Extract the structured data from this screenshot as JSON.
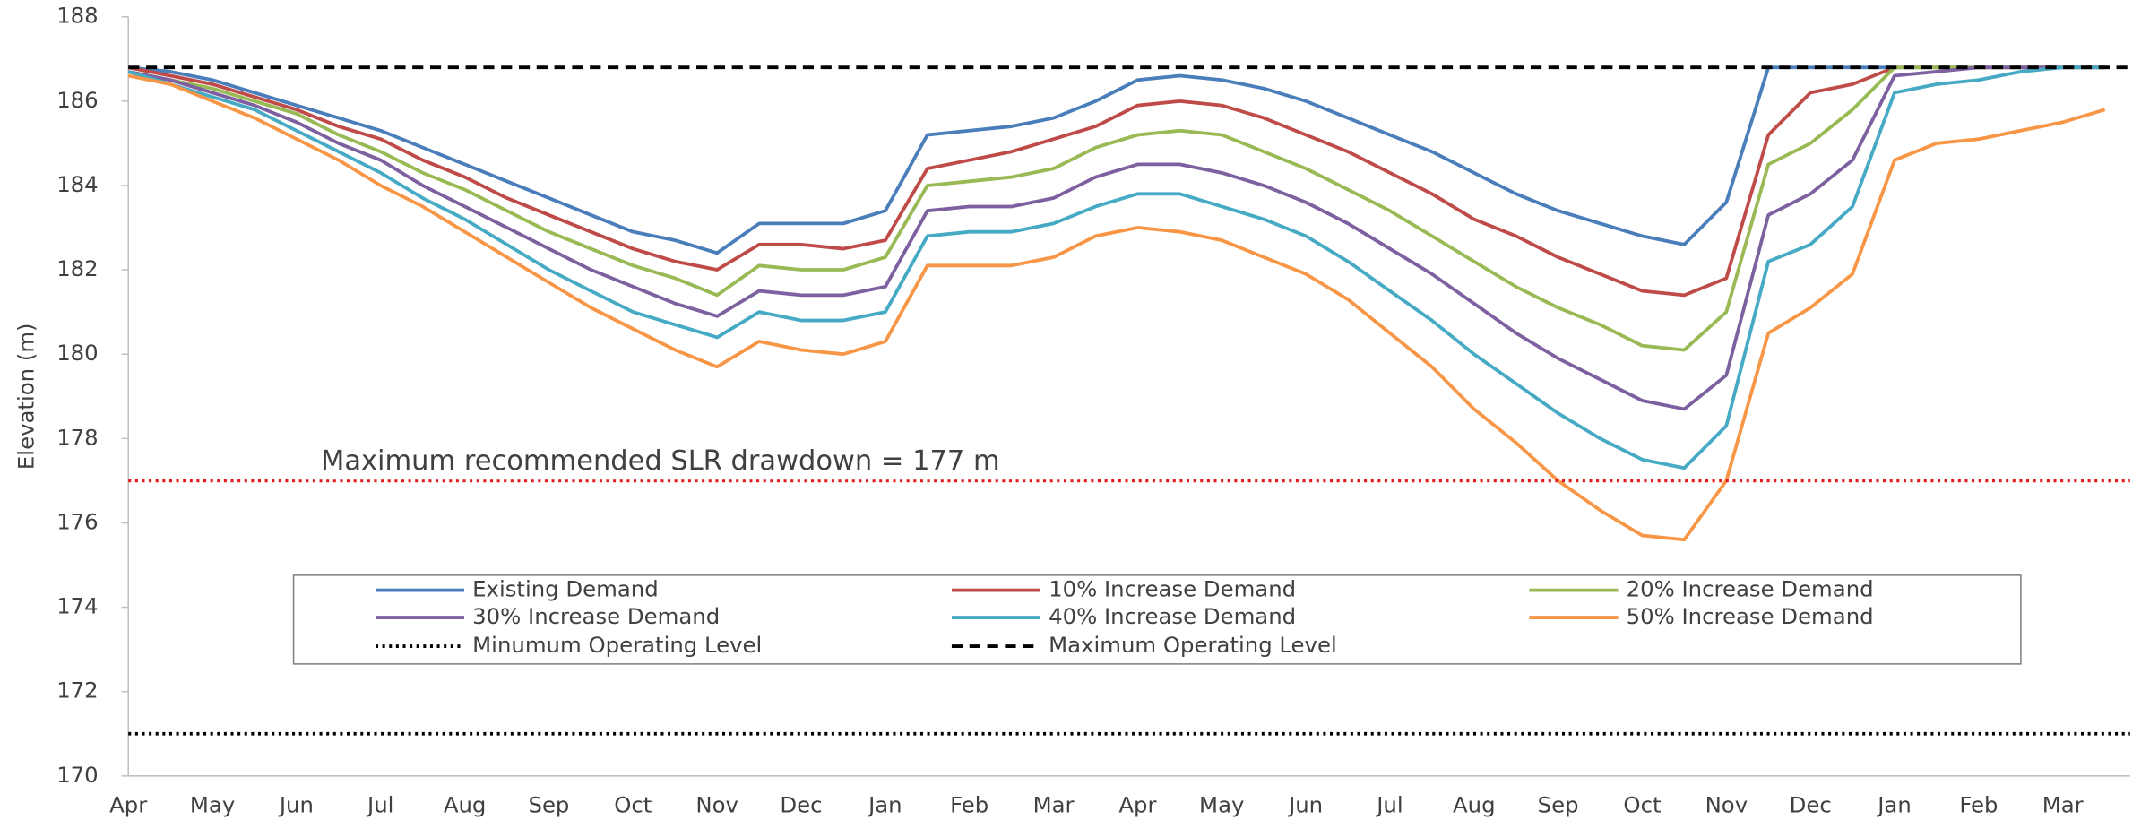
{
  "chart_data": {
    "type": "line",
    "y_label": "Elevation (m)",
    "categories": [
      "Apr",
      null,
      "May",
      null,
      "Jun",
      null,
      "Jul",
      null,
      "Aug",
      null,
      "Sep",
      null,
      "Oct",
      null,
      "Nov",
      null,
      "Dec",
      null,
      "Jan",
      null,
      "Feb",
      null,
      "Mar",
      null,
      "Apr",
      null,
      "May",
      null,
      "Jun",
      null,
      "Jul",
      null,
      "Aug",
      null,
      "Sep",
      null,
      "Oct",
      null,
      "Nov",
      null,
      "Dec",
      null,
      "Jan",
      null,
      "Feb",
      null,
      "Mar",
      null
    ],
    "ylim": [
      170,
      188
    ],
    "yticks": [
      170,
      172,
      174,
      176,
      178,
      180,
      182,
      184,
      186,
      188
    ],
    "grid": false,
    "series": [
      {
        "name": "Existing Demand",
        "color": "#4a7ebb",
        "values": [
          186.8,
          186.7,
          186.5,
          186.2,
          185.9,
          185.6,
          185.3,
          184.9,
          184.5,
          184.1,
          183.7,
          183.3,
          182.9,
          182.7,
          182.4,
          183.1,
          183.1,
          183.1,
          183.4,
          185.2,
          185.3,
          185.4,
          185.6,
          186.0,
          186.5,
          186.6,
          186.5,
          186.3,
          186.0,
          185.6,
          185.2,
          184.8,
          184.3,
          183.8,
          183.4,
          183.1,
          182.8,
          182.6,
          183.6,
          186.8,
          186.8,
          186.8,
          186.8,
          186.8,
          186.8,
          186.8,
          186.8,
          186.8
        ]
      },
      {
        "name": "10% Increase Demand",
        "color": "#be4b48",
        "values": [
          186.8,
          186.6,
          186.4,
          186.1,
          185.8,
          185.4,
          185.1,
          184.6,
          184.2,
          183.7,
          183.3,
          182.9,
          182.5,
          182.2,
          182.0,
          182.6,
          182.6,
          182.5,
          182.7,
          184.4,
          184.6,
          184.8,
          185.1,
          185.4,
          185.9,
          186.0,
          185.9,
          185.6,
          185.2,
          184.8,
          184.3,
          183.8,
          183.2,
          182.8,
          182.3,
          181.9,
          181.5,
          181.4,
          181.8,
          185.2,
          186.2,
          186.4,
          186.8,
          186.8,
          186.8,
          186.8,
          186.8,
          186.8
        ]
      },
      {
        "name": "20% Increase Demand",
        "color": "#98b954",
        "values": [
          186.7,
          186.5,
          186.3,
          186.0,
          185.7,
          185.2,
          184.8,
          184.3,
          183.9,
          183.4,
          182.9,
          182.5,
          182.1,
          181.8,
          181.4,
          182.1,
          182.0,
          182.0,
          182.3,
          184.0,
          184.1,
          184.2,
          184.4,
          184.9,
          185.2,
          185.3,
          185.2,
          184.8,
          184.4,
          183.9,
          183.4,
          182.8,
          182.2,
          181.6,
          181.1,
          180.7,
          180.2,
          180.1,
          181.0,
          184.5,
          185.0,
          185.8,
          186.8,
          186.8,
          186.8,
          186.8,
          186.8,
          186.8
        ]
      },
      {
        "name": "30% Increase Demand",
        "color": "#7d60a0",
        "values": [
          186.7,
          186.5,
          186.2,
          185.9,
          185.5,
          185.0,
          184.6,
          184.0,
          183.5,
          183.0,
          182.5,
          182.0,
          181.6,
          181.2,
          180.9,
          181.5,
          181.4,
          181.4,
          181.6,
          183.4,
          183.5,
          183.5,
          183.7,
          184.2,
          184.5,
          184.5,
          184.3,
          184.0,
          183.6,
          183.1,
          182.5,
          181.9,
          181.2,
          180.5,
          179.9,
          179.4,
          178.9,
          178.7,
          179.5,
          183.3,
          183.8,
          184.6,
          186.6,
          186.7,
          186.8,
          186.8,
          186.8,
          186.8
        ]
      },
      {
        "name": "40% Increase Demand",
        "color": "#46aac5",
        "values": [
          186.7,
          186.4,
          186.1,
          185.8,
          185.3,
          184.8,
          184.3,
          183.7,
          183.2,
          182.6,
          182.0,
          181.5,
          181.0,
          180.7,
          180.4,
          181.0,
          180.8,
          180.8,
          181.0,
          182.8,
          182.9,
          182.9,
          183.1,
          183.5,
          183.8,
          183.8,
          183.5,
          183.2,
          182.8,
          182.2,
          181.5,
          180.8,
          180.0,
          179.3,
          178.6,
          178.0,
          177.5,
          177.3,
          178.3,
          182.2,
          182.6,
          183.5,
          186.2,
          186.4,
          186.5,
          186.7,
          186.8,
          186.8
        ]
      },
      {
        "name": "50% Increase Demand",
        "color": "#f79646",
        "values": [
          186.6,
          186.4,
          186.0,
          185.6,
          185.1,
          184.6,
          184.0,
          183.5,
          182.9,
          182.3,
          181.7,
          181.1,
          180.6,
          180.1,
          179.7,
          180.3,
          180.1,
          180.0,
          180.3,
          182.1,
          182.1,
          182.1,
          182.3,
          182.8,
          183.0,
          182.9,
          182.7,
          182.3,
          181.9,
          181.3,
          180.5,
          179.7,
          178.7,
          177.9,
          177.0,
          176.3,
          175.7,
          175.6,
          177.0,
          180.5,
          181.1,
          181.9,
          184.6,
          185.0,
          185.1,
          185.3,
          185.5,
          185.8
        ]
      }
    ],
    "reference_lines": [
      {
        "name": "Minumum Operating Level",
        "value": 171,
        "color": "#000000",
        "style": "dotted"
      },
      {
        "name": "Maximum Operating Level",
        "value": 186.8,
        "color": "#000000",
        "style": "dashed"
      },
      {
        "value": 177,
        "color": "#e41a1c",
        "style": "dotted"
      }
    ],
    "annotation": "Maximum recommended SLR drawdown = 177 m"
  }
}
